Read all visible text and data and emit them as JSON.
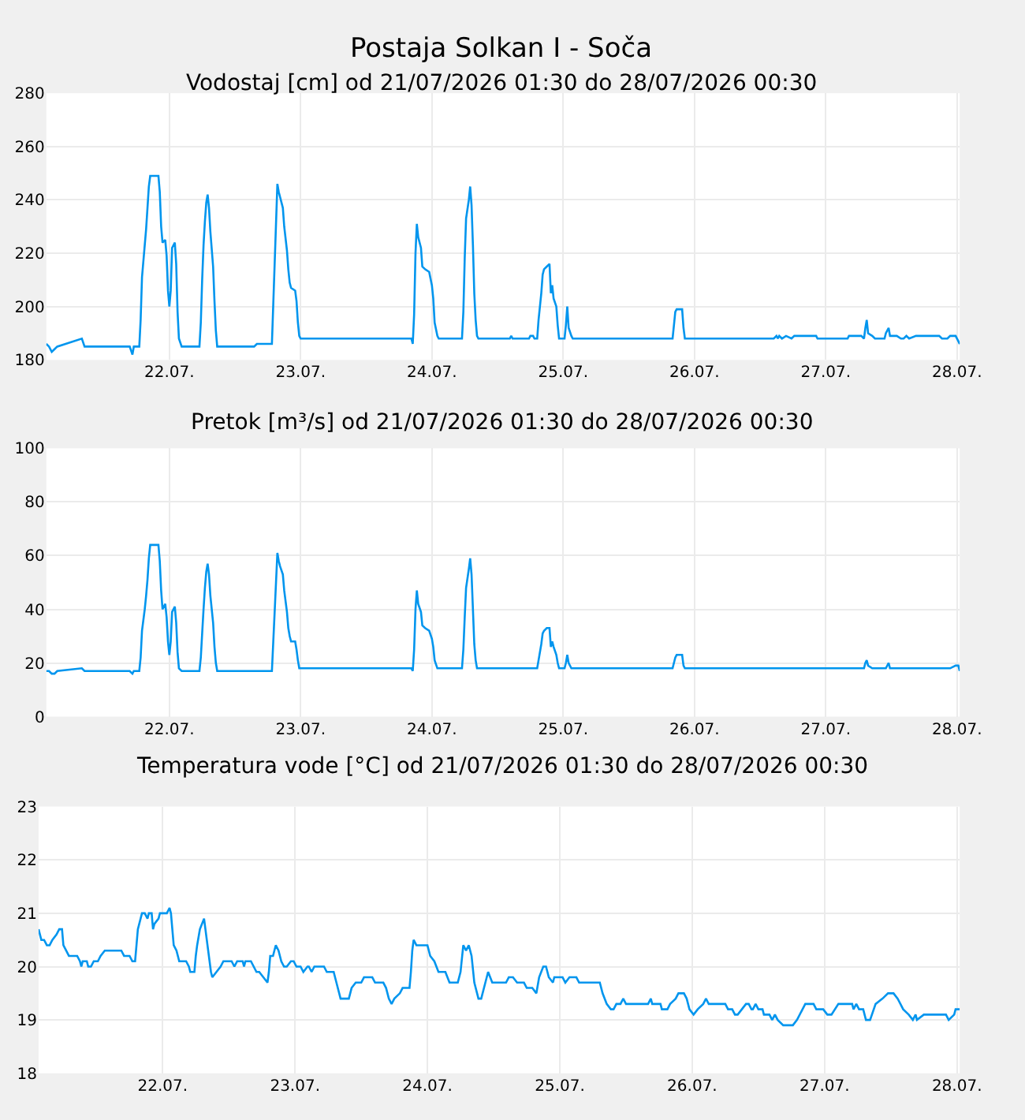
{
  "chart_data": [
    {
      "type": "line",
      "title": "Postaja Solkan I - Soča",
      "subtitle": "Vodostaj [cm] od 21/07/2026 01:30 do 28/07/2026 00:30",
      "grid": true,
      "marker": "none",
      "line_style": "solid",
      "xlim": [
        "2026-07-21T01:30",
        "2026-07-28T00:30"
      ],
      "xticks": [
        {
          "value": "2026-07-22",
          "label": "22.07."
        },
        {
          "value": "2026-07-23",
          "label": "23.07."
        },
        {
          "value": "2026-07-24",
          "label": "24.07."
        },
        {
          "value": "2026-07-25",
          "label": "25.07."
        },
        {
          "value": "2026-07-26",
          "label": "26.07."
        },
        {
          "value": "2026-07-27",
          "label": "27.07."
        },
        {
          "value": "2026-07-28",
          "label": "28.07."
        }
      ],
      "ylim": [
        180,
        280
      ],
      "yticks": [
        180,
        200,
        220,
        240,
        260,
        280
      ],
      "series": [
        {
          "color": "#0095ee",
          "x": [
            "2026-07-21T01:30",
            "2026-07-21T02:00",
            "2026-07-21T02:30",
            "2026-07-21T03:00",
            "2026-07-21T03:30",
            "2026-07-21T08:00",
            "2026-07-21T08:30",
            "2026-07-21T16:45",
            "2026-07-21T17:15",
            "2026-07-21T17:30",
            "2026-07-21T18:30",
            "2026-07-21T18:45",
            "2026-07-21T19:00",
            "2026-07-21T19:30",
            "2026-07-21T19:45",
            "2026-07-21T20:00",
            "2026-07-21T20:15",
            "2026-07-21T20:30",
            "2026-07-21T22:00",
            "2026-07-21T22:15",
            "2026-07-21T22:30",
            "2026-07-21T22:45",
            "2026-07-21T23:15",
            "2026-07-21T23:30",
            "2026-07-21T23:45",
            "2026-07-22T00:00",
            "2026-07-22T00:15",
            "2026-07-22T00:30",
            "2026-07-22T01:00",
            "2026-07-22T01:15",
            "2026-07-22T01:30",
            "2026-07-22T01:45",
            "2026-07-22T02:15",
            "2026-07-22T05:30",
            "2026-07-22T05:45",
            "2026-07-22T06:00",
            "2026-07-22T06:15",
            "2026-07-22T06:30",
            "2026-07-22T06:45",
            "2026-07-22T07:00",
            "2026-07-22T07:15",
            "2026-07-22T07:30",
            "2026-07-22T08:00",
            "2026-07-22T08:15",
            "2026-07-22T08:30",
            "2026-07-22T08:45",
            "2026-07-22T15:30",
            "2026-07-22T16:00",
            "2026-07-22T18:45",
            "2026-07-22T19:00",
            "2026-07-22T19:30",
            "2026-07-22T19:45",
            "2026-07-22T20:00",
            "2026-07-22T20:15",
            "2026-07-22T20:45",
            "2026-07-22T21:00",
            "2026-07-22T21:30",
            "2026-07-22T21:45",
            "2026-07-22T22:00",
            "2026-07-22T22:15",
            "2026-07-22T23:00",
            "2026-07-22T23:15",
            "2026-07-22T23:30",
            "2026-07-22T23:45",
            "2026-07-23T00:00",
            "2026-07-23T20:15",
            "2026-07-23T20:30",
            "2026-07-23T20:45",
            "2026-07-23T21:00",
            "2026-07-23T21:15",
            "2026-07-23T21:30",
            "2026-07-23T22:00",
            "2026-07-23T22:15",
            "2026-07-23T22:45",
            "2026-07-23T23:30",
            "2026-07-24T00:00",
            "2026-07-24T00:15",
            "2026-07-24T00:30",
            "2026-07-24T01:00",
            "2026-07-24T01:15",
            "2026-07-24T05:30",
            "2026-07-24T05:45",
            "2026-07-24T06:00",
            "2026-07-24T06:15",
            "2026-07-24T06:45",
            "2026-07-24T07:00",
            "2026-07-24T07:15",
            "2026-07-24T07:30",
            "2026-07-24T07:45",
            "2026-07-24T08:00",
            "2026-07-24T08:15",
            "2026-07-24T08:30",
            "2026-07-24T14:15",
            "2026-07-24T14:30",
            "2026-07-24T14:45",
            "2026-07-24T17:45",
            "2026-07-24T18:00",
            "2026-07-24T18:30",
            "2026-07-24T18:45",
            "2026-07-24T19:15",
            "2026-07-24T19:30",
            "2026-07-24T20:00",
            "2026-07-24T20:15",
            "2026-07-24T20:30",
            "2026-07-24T21:00",
            "2026-07-24T21:30",
            "2026-07-24T21:45",
            "2026-07-24T22:00",
            "2026-07-24T22:15",
            "2026-07-24T22:45",
            "2026-07-24T23:00",
            "2026-07-24T23:15",
            "2026-07-25T00:15",
            "2026-07-25T00:30",
            "2026-07-25T00:45",
            "2026-07-25T01:00",
            "2026-07-25T01:30",
            "2026-07-25T01:45",
            "2026-07-25T20:00",
            "2026-07-25T20:15",
            "2026-07-25T20:30",
            "2026-07-25T20:45",
            "2026-07-25T21:45",
            "2026-07-25T22:00",
            "2026-07-25T22:15",
            "2026-07-26T14:30",
            "2026-07-26T15:00",
            "2026-07-26T15:15",
            "2026-07-26T15:30",
            "2026-07-26T16:00",
            "2026-07-26T16:45",
            "2026-07-26T17:45",
            "2026-07-26T18:15",
            "2026-07-26T22:15",
            "2026-07-26T22:30",
            "2026-07-27T04:00",
            "2026-07-27T04:15",
            "2026-07-27T06:30",
            "2026-07-27T07:00",
            "2026-07-27T07:15",
            "2026-07-27T07:30",
            "2026-07-27T07:45",
            "2026-07-27T08:30",
            "2026-07-27T09:00",
            "2026-07-27T10:45",
            "2026-07-27T11:00",
            "2026-07-27T11:30",
            "2026-07-27T11:45",
            "2026-07-27T13:00",
            "2026-07-27T13:45",
            "2026-07-27T14:15",
            "2026-07-27T14:45",
            "2026-07-27T15:15",
            "2026-07-27T16:30",
            "2026-07-27T20:45",
            "2026-07-27T21:15",
            "2026-07-27T22:15",
            "2026-07-27T22:45",
            "2026-07-27T23:45",
            "2026-07-28T00:15",
            "2026-07-28T00:30"
          ],
          "values": [
            186,
            185,
            183,
            184,
            185,
            188,
            185,
            185,
            182,
            185,
            185,
            195,
            211,
            223,
            229,
            237,
            245,
            249,
            249,
            243,
            230,
            224,
            225,
            219,
            206,
            200,
            206,
            222,
            224,
            216,
            198,
            188,
            185,
            185,
            194,
            210,
            223,
            232,
            239,
            242,
            237,
            228,
            215,
            202,
            191,
            185,
            185,
            186,
            186,
            201,
            231,
            246,
            243,
            241,
            237,
            230,
            221,
            214,
            209,
            207,
            206,
            202,
            194,
            189,
            188,
            188,
            186,
            197,
            220,
            231,
            226,
            222,
            215,
            214,
            213,
            208,
            203,
            194,
            189,
            188,
            188,
            198,
            218,
            233,
            240,
            245,
            238,
            223,
            205,
            195,
            189,
            188,
            188,
            189,
            188,
            188,
            189,
            189,
            188,
            188,
            195,
            205,
            212,
            214,
            215,
            216,
            205,
            208,
            203,
            200,
            193,
            188,
            188,
            193,
            200,
            192,
            189,
            188,
            188,
            193,
            198,
            199,
            199,
            192,
            188,
            188,
            189,
            188,
            189,
            188,
            189,
            188,
            189,
            189,
            188,
            188,
            189,
            189,
            188,
            192,
            195,
            190,
            189,
            188,
            188,
            190,
            192,
            189,
            189,
            188,
            188,
            189,
            188,
            189,
            189,
            188,
            188,
            189,
            189,
            187,
            186
          ]
        }
      ]
    },
    {
      "type": "line",
      "title": "Pretok [m³/s] od 21/07/2026 01:30 do 28/07/2026 00:30",
      "grid": true,
      "marker": "none",
      "line_style": "solid",
      "xlim": [
        "2026-07-21T01:30",
        "2026-07-28T00:30"
      ],
      "xticks": [
        {
          "value": "2026-07-22",
          "label": "22.07."
        },
        {
          "value": "2026-07-23",
          "label": "23.07."
        },
        {
          "value": "2026-07-24",
          "label": "24.07."
        },
        {
          "value": "2026-07-25",
          "label": "25.07."
        },
        {
          "value": "2026-07-26",
          "label": "26.07."
        },
        {
          "value": "2026-07-27",
          "label": "27.07."
        },
        {
          "value": "2026-07-28",
          "label": "28.07."
        }
      ],
      "ylim": [
        0,
        100
      ],
      "yticks": [
        0,
        20,
        40,
        60,
        80,
        100
      ],
      "series": [
        {
          "color": "#0095ee",
          "x": [
            "2026-07-21T01:30",
            "2026-07-21T02:00",
            "2026-07-21T02:30",
            "2026-07-21T03:00",
            "2026-07-21T03:30",
            "2026-07-21T08:00",
            "2026-07-21T08:30",
            "2026-07-21T16:45",
            "2026-07-21T17:15",
            "2026-07-21T17:30",
            "2026-07-21T18:30",
            "2026-07-21T18:45",
            "2026-07-21T19:00",
            "2026-07-21T19:30",
            "2026-07-21T19:45",
            "2026-07-21T20:00",
            "2026-07-21T20:15",
            "2026-07-21T20:30",
            "2026-07-21T22:00",
            "2026-07-21T22:15",
            "2026-07-21T22:30",
            "2026-07-21T22:45",
            "2026-07-21T23:15",
            "2026-07-21T23:30",
            "2026-07-21T23:45",
            "2026-07-22T00:00",
            "2026-07-22T00:15",
            "2026-07-22T00:30",
            "2026-07-22T01:00",
            "2026-07-22T01:15",
            "2026-07-22T01:30",
            "2026-07-22T01:45",
            "2026-07-22T02:15",
            "2026-07-22T05:30",
            "2026-07-22T05:45",
            "2026-07-22T06:00",
            "2026-07-22T06:15",
            "2026-07-22T06:30",
            "2026-07-22T06:45",
            "2026-07-22T07:00",
            "2026-07-22T07:15",
            "2026-07-22T07:30",
            "2026-07-22T08:00",
            "2026-07-22T08:15",
            "2026-07-22T08:30",
            "2026-07-22T08:45",
            "2026-07-22T15:30",
            "2026-07-22T16:00",
            "2026-07-22T18:45",
            "2026-07-22T19:00",
            "2026-07-22T19:30",
            "2026-07-22T19:45",
            "2026-07-22T20:00",
            "2026-07-22T20:15",
            "2026-07-22T20:45",
            "2026-07-22T21:00",
            "2026-07-22T21:30",
            "2026-07-22T21:45",
            "2026-07-22T22:00",
            "2026-07-22T22:15",
            "2026-07-22T23:00",
            "2026-07-22T23:15",
            "2026-07-22T23:30",
            "2026-07-22T23:45",
            "2026-07-23T00:00",
            "2026-07-23T20:15",
            "2026-07-23T20:30",
            "2026-07-23T20:45",
            "2026-07-23T21:00",
            "2026-07-23T21:15",
            "2026-07-23T21:30",
            "2026-07-23T22:00",
            "2026-07-23T22:15",
            "2026-07-23T22:45",
            "2026-07-23T23:30",
            "2026-07-24T00:00",
            "2026-07-24T00:15",
            "2026-07-24T00:30",
            "2026-07-24T01:00",
            "2026-07-24T01:15",
            "2026-07-24T05:30",
            "2026-07-24T05:45",
            "2026-07-24T06:00",
            "2026-07-24T06:15",
            "2026-07-24T06:45",
            "2026-07-24T07:00",
            "2026-07-24T07:15",
            "2026-07-24T07:30",
            "2026-07-24T07:45",
            "2026-07-24T08:00",
            "2026-07-24T08:15",
            "2026-07-24T08:30",
            "2026-07-24T19:15",
            "2026-07-24T19:30",
            "2026-07-24T20:00",
            "2026-07-24T20:15",
            "2026-07-24T20:30",
            "2026-07-24T21:00",
            "2026-07-24T21:30",
            "2026-07-24T21:45",
            "2026-07-24T22:00",
            "2026-07-24T22:15",
            "2026-07-24T22:45",
            "2026-07-24T23:00",
            "2026-07-24T23:15",
            "2026-07-25T00:15",
            "2026-07-25T00:30",
            "2026-07-25T00:45",
            "2026-07-25T01:00",
            "2026-07-25T01:30",
            "2026-07-25T01:45",
            "2026-07-25T20:00",
            "2026-07-25T20:15",
            "2026-07-25T20:30",
            "2026-07-25T20:45",
            "2026-07-25T21:45",
            "2026-07-25T22:00",
            "2026-07-25T22:15",
            "2026-07-27T07:00",
            "2026-07-27T07:15",
            "2026-07-27T07:30",
            "2026-07-27T07:45",
            "2026-07-27T08:30",
            "2026-07-27T11:00",
            "2026-07-27T11:30",
            "2026-07-27T11:45",
            "2026-07-27T22:45",
            "2026-07-27T23:45",
            "2026-07-28T00:15",
            "2026-07-28T00:30"
          ],
          "values": [
            17,
            17,
            16,
            16,
            17,
            18,
            17,
            17,
            16,
            17,
            17,
            22,
            32,
            40,
            45,
            51,
            59,
            64,
            64,
            58,
            47,
            40,
            42,
            37,
            28,
            23,
            28,
            39,
            41,
            35,
            24,
            18,
            17,
            17,
            22,
            31,
            40,
            48,
            54,
            57,
            53,
            45,
            35,
            26,
            20,
            17,
            17,
            17,
            17,
            28,
            50,
            61,
            58,
            56,
            53,
            47,
            39,
            33,
            30,
            28,
            28,
            25,
            21,
            18,
            18,
            18,
            17,
            25,
            40,
            47,
            42,
            39,
            34,
            33,
            32,
            29,
            26,
            21,
            18,
            18,
            18,
            25,
            37,
            48,
            55,
            59,
            53,
            40,
            27,
            21,
            18,
            18,
            18,
            21,
            27,
            31,
            32,
            33,
            33,
            26,
            28,
            26,
            23,
            20,
            18,
            18,
            20,
            23,
            20,
            18,
            18,
            18,
            20,
            22,
            23,
            23,
            19,
            18,
            18,
            20,
            21,
            19,
            18,
            18,
            20,
            18,
            18,
            19,
            19,
            17
          ]
        }
      ]
    },
    {
      "type": "line",
      "title": "Temperatura vode [°C] od 21/07/2026 01:30 do 28/07/2026 00:30",
      "grid": true,
      "marker": "none",
      "line_style": "solid",
      "xlim": [
        "2026-07-21T01:30",
        "2026-07-28T00:30"
      ],
      "xticks": [
        {
          "value": "2026-07-22",
          "label": "22.07."
        },
        {
          "value": "2026-07-23",
          "label": "23.07."
        },
        {
          "value": "2026-07-24",
          "label": "24.07."
        },
        {
          "value": "2026-07-25",
          "label": "25.07."
        },
        {
          "value": "2026-07-26",
          "label": "26.07."
        },
        {
          "value": "2026-07-27",
          "label": "27.07."
        },
        {
          "value": "2026-07-28",
          "label": "28.07."
        }
      ],
      "ylim": [
        18,
        23
      ],
      "yticks": [
        18,
        19,
        20,
        21,
        22,
        23
      ],
      "series": [
        {
          "color": "#0095ee",
          "x": [
            "2026-07-21T01:30",
            "2026-07-21T02:00",
            "2026-07-21T02:30",
            "2026-07-21T03:00",
            "2026-07-21T03:30",
            "2026-07-21T04:00",
            "2026-07-21T04:45",
            "2026-07-21T05:15",
            "2026-07-21T05:45",
            "2026-07-21T06:00",
            "2026-07-21T06:30",
            "2026-07-21T07:00",
            "2026-07-21T08:30",
            "2026-07-21T09:00",
            "2026-07-21T09:15",
            "2026-07-21T09:30",
            "2026-07-21T10:15",
            "2026-07-21T10:30",
            "2026-07-21T11:00",
            "2026-07-21T11:30",
            "2026-07-21T12:15",
            "2026-07-21T12:45",
            "2026-07-21T13:30",
            "2026-07-21T16:30",
            "2026-07-21T17:00",
            "2026-07-21T18:00",
            "2026-07-21T18:30",
            "2026-07-21T19:00",
            "2026-07-21T19:15",
            "2026-07-21T19:30",
            "2026-07-21T20:15",
            "2026-07-21T20:45",
            "2026-07-21T21:15",
            "2026-07-21T21:30",
            "2026-07-21T22:00",
            "2026-07-21T22:15",
            "2026-07-21T22:30",
            "2026-07-21T23:15",
            "2026-07-21T23:30",
            "2026-07-22T00:45",
            "2026-07-22T01:15",
            "2026-07-22T01:30",
            "2026-07-22T01:45",
            "2026-07-22T02:00",
            "2026-07-22T02:30",
            "2026-07-22T03:00",
            "2026-07-22T04:15",
            "2026-07-22T04:45",
            "2026-07-22T05:00",
            "2026-07-22T05:45",
            "2026-07-22T06:00",
            "2026-07-22T06:15",
            "2026-07-22T06:45",
            "2026-07-22T07:30",
            "2026-07-22T08:00",
            "2026-07-22T08:15",
            "2026-07-22T08:45",
            "2026-07-22T09:00",
            "2026-07-22T09:45",
            "2026-07-22T10:30",
            "2026-07-22T11:00",
            "2026-07-22T12:30",
            "2026-07-22T13:00",
            "2026-07-22T13:30",
            "2026-07-22T14:30",
            "2026-07-22T14:45",
            "2026-07-22T15:00",
            "2026-07-22T16:00",
            "2026-07-22T17:00",
            "2026-07-22T17:30",
            "2026-07-22T18:15",
            "2026-07-22T19:00",
            "2026-07-22T19:15",
            "2026-07-22T19:30",
            "2026-07-22T20:00",
            "2026-07-22T20:30",
            "2026-07-22T21:00",
            "2026-07-22T21:30",
            "2026-07-22T22:00",
            "2026-07-22T22:30",
            "2026-07-22T23:15",
            "2026-07-22T23:45",
            "2026-07-23T00:15",
            "2026-07-23T01:00",
            "2026-07-23T01:30",
            "2026-07-23T02:15",
            "2026-07-23T02:30",
            "2026-07-23T03:00",
            "2026-07-23T03:30",
            "2026-07-23T05:15",
            "2026-07-23T05:45",
            "2026-07-23T07:00",
            "2026-07-23T07:30",
            "2026-07-23T08:15",
            "2026-07-23T08:45",
            "2026-07-23T09:45",
            "2026-07-23T10:15",
            "2026-07-23T11:00",
            "2026-07-23T12:00",
            "2026-07-23T12:30",
            "2026-07-23T14:00",
            "2026-07-23T14:30",
            "2026-07-23T16:00",
            "2026-07-23T16:30",
            "2026-07-23T17:00",
            "2026-07-23T17:30",
            "2026-07-23T18:00",
            "2026-07-23T19:00",
            "2026-07-23T19:30",
            "2026-07-23T20:45",
            "2026-07-23T21:00",
            "2026-07-23T21:15",
            "2026-07-23T21:30",
            "2026-07-23T22:00",
            "2026-07-24T00:00",
            "2026-07-24T00:30",
            "2026-07-24T01:15",
            "2026-07-24T02:00",
            "2026-07-24T03:15",
            "2026-07-24T04:00",
            "2026-07-24T05:30",
            "2026-07-24T06:00",
            "2026-07-24T06:30",
            "2026-07-24T07:00",
            "2026-07-24T07:30",
            "2026-07-24T08:00",
            "2026-07-24T08:30",
            "2026-07-24T09:00",
            "2026-07-24T09:15",
            "2026-07-24T09:45",
            "2026-07-24T10:30",
            "2026-07-24T11:00",
            "2026-07-24T11:45",
            "2026-07-24T12:00",
            "2026-07-24T14:15",
            "2026-07-24T14:45",
            "2026-07-24T15:30",
            "2026-07-24T16:15",
            "2026-07-24T17:30",
            "2026-07-24T18:00",
            "2026-07-24T19:00",
            "2026-07-24T19:45",
            "2026-07-24T20:15",
            "2026-07-24T21:00",
            "2026-07-24T21:30",
            "2026-07-24T22:00",
            "2026-07-24T22:45",
            "2026-07-24T23:00",
            "2026-07-25T00:30",
            "2026-07-25T01:00",
            "2026-07-25T01:45",
            "2026-07-25T03:00",
            "2026-07-25T03:30",
            "2026-07-25T07:15",
            "2026-07-25T07:45",
            "2026-07-25T08:30",
            "2026-07-25T09:15",
            "2026-07-25T09:45",
            "2026-07-25T10:15",
            "2026-07-25T11:00",
            "2026-07-25T11:30",
            "2026-07-25T12:00",
            "2026-07-25T16:00",
            "2026-07-25T16:30",
            "2026-07-25T16:45",
            "2026-07-25T18:15",
            "2026-07-25T18:30",
            "2026-07-25T19:30",
            "2026-07-25T20:00",
            "2026-07-25T21:00",
            "2026-07-25T21:30",
            "2026-07-25T22:30",
            "2026-07-25T23:00",
            "2026-07-25T23:30",
            "2026-07-26T00:15",
            "2026-07-26T01:00",
            "2026-07-26T02:00",
            "2026-07-26T02:30",
            "2026-07-26T03:00",
            "2026-07-26T06:00",
            "2026-07-26T06:30",
            "2026-07-26T07:15",
            "2026-07-26T07:45",
            "2026-07-26T08:15",
            "2026-07-26T09:00",
            "2026-07-26T09:45",
            "2026-07-26T10:15",
            "2026-07-26T10:45",
            "2026-07-26T11:00",
            "2026-07-26T11:30",
            "2026-07-26T12:00",
            "2026-07-26T12:45",
            "2026-07-26T13:00",
            "2026-07-26T14:00",
            "2026-07-26T14:30",
            "2026-07-26T15:00",
            "2026-07-26T15:30",
            "2026-07-26T16:30",
            "2026-07-26T18:15",
            "2026-07-26T19:00",
            "2026-07-26T20:00",
            "2026-07-26T20:30",
            "2026-07-26T22:00",
            "2026-07-26T22:30",
            "2026-07-26T23:45",
            "2026-07-27T00:30",
            "2026-07-27T01:15",
            "2026-07-27T02:30",
            "2026-07-27T05:00",
            "2026-07-27T05:15",
            "2026-07-27T05:45",
            "2026-07-27T06:15",
            "2026-07-27T07:00",
            "2026-07-27T07:30",
            "2026-07-27T08:15",
            "2026-07-27T09:15",
            "2026-07-27T10:30",
            "2026-07-27T11:30",
            "2026-07-27T12:30",
            "2026-07-27T13:15",
            "2026-07-27T14:15",
            "2026-07-27T15:15",
            "2026-07-27T16:00",
            "2026-07-27T16:30",
            "2026-07-27T16:45",
            "2026-07-27T18:00",
            "2026-07-27T22:00",
            "2026-07-27T22:30",
            "2026-07-27T23:30",
            "2026-07-27T23:45",
            "2026-07-28T00:30"
          ],
          "values": [
            20.7,
            20.5,
            20.5,
            20.4,
            20.4,
            20.5,
            20.6,
            20.7,
            20.7,
            20.4,
            20.3,
            20.2,
            20.2,
            20.1,
            20.0,
            20.1,
            20.1,
            20.0,
            20.0,
            20.1,
            20.1,
            20.2,
            20.3,
            20.3,
            20.2,
            20.2,
            20.1,
            20.1,
            20.4,
            20.7,
            21.0,
            21.0,
            20.9,
            21.0,
            21.0,
            20.7,
            20.8,
            20.9,
            21.0,
            21.0,
            21.1,
            21.0,
            20.7,
            20.4,
            20.3,
            20.1,
            20.1,
            20.0,
            19.9,
            19.9,
            20.2,
            20.4,
            20.7,
            20.9,
            20.5,
            20.3,
            19.9,
            19.8,
            19.9,
            20.0,
            20.1,
            20.1,
            20.0,
            20.1,
            20.1,
            20.0,
            20.1,
            20.1,
            19.9,
            19.9,
            19.8,
            19.7,
            19.9,
            20.2,
            20.2,
            20.4,
            20.3,
            20.1,
            20.0,
            20.0,
            20.1,
            20.1,
            20.0,
            20.0,
            19.9,
            20.0,
            20.0,
            19.9,
            20.0,
            20.0,
            19.9,
            19.9,
            19.7,
            19.4,
            19.4,
            19.4,
            19.6,
            19.7,
            19.7,
            19.8,
            19.8,
            19.7,
            19.7,
            19.6,
            19.4,
            19.3,
            19.4,
            19.5,
            19.6,
            19.6,
            19.9,
            20.3,
            20.5,
            20.4,
            20.4,
            20.2,
            20.1,
            19.9,
            19.9,
            19.7,
            19.7,
            19.9,
            20.4,
            20.3,
            20.4,
            20.2,
            19.7,
            19.5,
            19.4,
            19.4,
            19.7,
            19.9,
            19.7,
            19.7,
            19.7,
            19.8,
            19.8,
            19.7,
            19.7,
            19.6,
            19.6,
            19.5,
            19.8,
            20.0,
            20.0,
            19.8,
            19.7,
            19.8,
            19.8,
            19.7,
            19.8,
            19.8,
            19.7,
            19.7,
            19.5,
            19.3,
            19.2,
            19.2,
            19.3,
            19.3,
            19.4,
            19.3,
            19.3,
            19.4,
            19.3,
            19.3,
            19.2,
            19.2,
            19.3,
            19.4,
            19.5,
            19.5,
            19.4,
            19.2,
            19.1,
            19.2,
            19.3,
            19.4,
            19.3,
            19.3,
            19.2,
            19.2,
            19.1,
            19.1,
            19.2,
            19.3,
            19.3,
            19.2,
            19.2,
            19.3,
            19.2,
            19.2,
            19.1,
            19.1,
            19.0,
            19.1,
            19.0,
            18.9,
            18.9,
            19.0,
            19.2,
            19.3,
            19.3,
            19.2,
            19.2,
            19.1,
            19.1,
            19.3,
            19.3,
            19.2,
            19.3,
            19.2,
            19.2,
            19.0,
            19.0,
            19.3,
            19.4,
            19.5,
            19.5,
            19.4,
            19.2,
            19.1,
            19.0,
            19.1,
            19.0,
            19.1,
            19.1,
            19.0,
            19.1,
            19.2,
            19.2
          ]
        }
      ]
    }
  ]
}
